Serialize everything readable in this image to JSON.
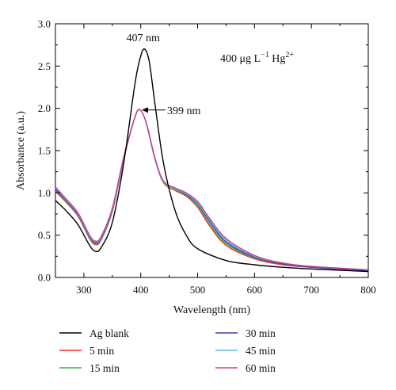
{
  "chart_data": {
    "type": "line",
    "xlabel": "Wavelength (nm)",
    "ylabel": "Absorbance (a.u.)",
    "xlim": [
      250,
      800
    ],
    "ylim": [
      0.0,
      3.0
    ],
    "xticks": [
      300,
      400,
      500,
      600,
      700,
      800
    ],
    "yticks": [
      0.0,
      0.5,
      1.0,
      1.5,
      2.0,
      2.5,
      3.0
    ],
    "xtick_labels": [
      "300",
      "400",
      "500",
      "600",
      "700",
      "800"
    ],
    "ytick_labels": [
      "0.0",
      "0.5",
      "1.0",
      "1.5",
      "2.0",
      "2.5",
      "3.0"
    ],
    "grid": false,
    "legend_position": "bottom",
    "annotations": {
      "peak1": {
        "text": "407 nm",
        "x": 407,
        "y": 2.7
      },
      "peak2": {
        "text": "399 nm",
        "x": 399,
        "y": 1.98
      },
      "condition": {
        "main": "400 μg L",
        "sup1": "−1",
        "mid": " Hg",
        "sup2": "2+"
      }
    },
    "colors": {
      "Ag blank": "#000000",
      "5 min": "#ff2a2a",
      "15 min": "#3cb93c",
      "30 min": "#3b3bb5",
      "45 min": "#5fb8dc",
      "60 min": "#cc3d99"
    },
    "series": [
      {
        "name": "Ag blank",
        "x": [
          250,
          270,
          290,
          310,
          320,
          330,
          350,
          370,
          390,
          400,
          407,
          415,
          425,
          440,
          460,
          480,
          500,
          550,
          600,
          650,
          700,
          800
        ],
        "y": [
          0.91,
          0.78,
          0.62,
          0.38,
          0.31,
          0.35,
          0.65,
          1.35,
          2.3,
          2.62,
          2.7,
          2.55,
          2.05,
          1.35,
          0.8,
          0.5,
          0.34,
          0.2,
          0.15,
          0.12,
          0.1,
          0.07
        ]
      },
      {
        "name": "5 min",
        "x": [
          250,
          270,
          290,
          310,
          320,
          330,
          350,
          370,
          390,
          399,
          410,
          425,
          440,
          460,
          480,
          500,
          520,
          550,
          600,
          650,
          700,
          800
        ],
        "y": [
          1.02,
          0.88,
          0.72,
          0.46,
          0.39,
          0.44,
          0.78,
          1.4,
          1.9,
          1.98,
          1.82,
          1.4,
          1.12,
          1.03,
          0.96,
          0.83,
          0.62,
          0.38,
          0.22,
          0.15,
          0.12,
          0.08
        ]
      },
      {
        "name": "15 min",
        "x": [
          250,
          270,
          290,
          310,
          320,
          330,
          350,
          370,
          390,
          399,
          410,
          425,
          440,
          460,
          480,
          500,
          520,
          550,
          600,
          650,
          700,
          800
        ],
        "y": [
          1.03,
          0.89,
          0.73,
          0.47,
          0.4,
          0.45,
          0.79,
          1.41,
          1.9,
          1.98,
          1.82,
          1.4,
          1.12,
          1.04,
          0.97,
          0.85,
          0.64,
          0.4,
          0.23,
          0.16,
          0.12,
          0.08
        ]
      },
      {
        "name": "30 min",
        "x": [
          250,
          270,
          290,
          310,
          320,
          330,
          350,
          370,
          390,
          399,
          410,
          425,
          440,
          460,
          480,
          500,
          520,
          550,
          600,
          650,
          700,
          800
        ],
        "y": [
          1.04,
          0.9,
          0.74,
          0.48,
          0.41,
          0.46,
          0.8,
          1.41,
          1.9,
          1.98,
          1.82,
          1.41,
          1.13,
          1.05,
          0.98,
          0.87,
          0.67,
          0.42,
          0.24,
          0.16,
          0.12,
          0.08
        ]
      },
      {
        "name": "45 min",
        "x": [
          250,
          270,
          290,
          310,
          320,
          330,
          350,
          370,
          390,
          399,
          410,
          425,
          440,
          460,
          480,
          500,
          520,
          550,
          600,
          650,
          700,
          800
        ],
        "y": [
          1.06,
          0.91,
          0.75,
          0.49,
          0.42,
          0.47,
          0.81,
          1.42,
          1.9,
          1.98,
          1.82,
          1.41,
          1.13,
          1.05,
          0.99,
          0.88,
          0.69,
          0.44,
          0.25,
          0.17,
          0.13,
          0.09
        ]
      },
      {
        "name": "60 min",
        "x": [
          250,
          270,
          290,
          310,
          320,
          330,
          350,
          370,
          390,
          399,
          410,
          425,
          440,
          460,
          480,
          500,
          520,
          550,
          600,
          650,
          700,
          800
        ],
        "y": [
          1.07,
          0.92,
          0.76,
          0.5,
          0.43,
          0.48,
          0.82,
          1.42,
          1.9,
          1.98,
          1.82,
          1.41,
          1.14,
          1.06,
          1.0,
          0.9,
          0.71,
          0.46,
          0.26,
          0.17,
          0.13,
          0.09
        ]
      }
    ]
  }
}
